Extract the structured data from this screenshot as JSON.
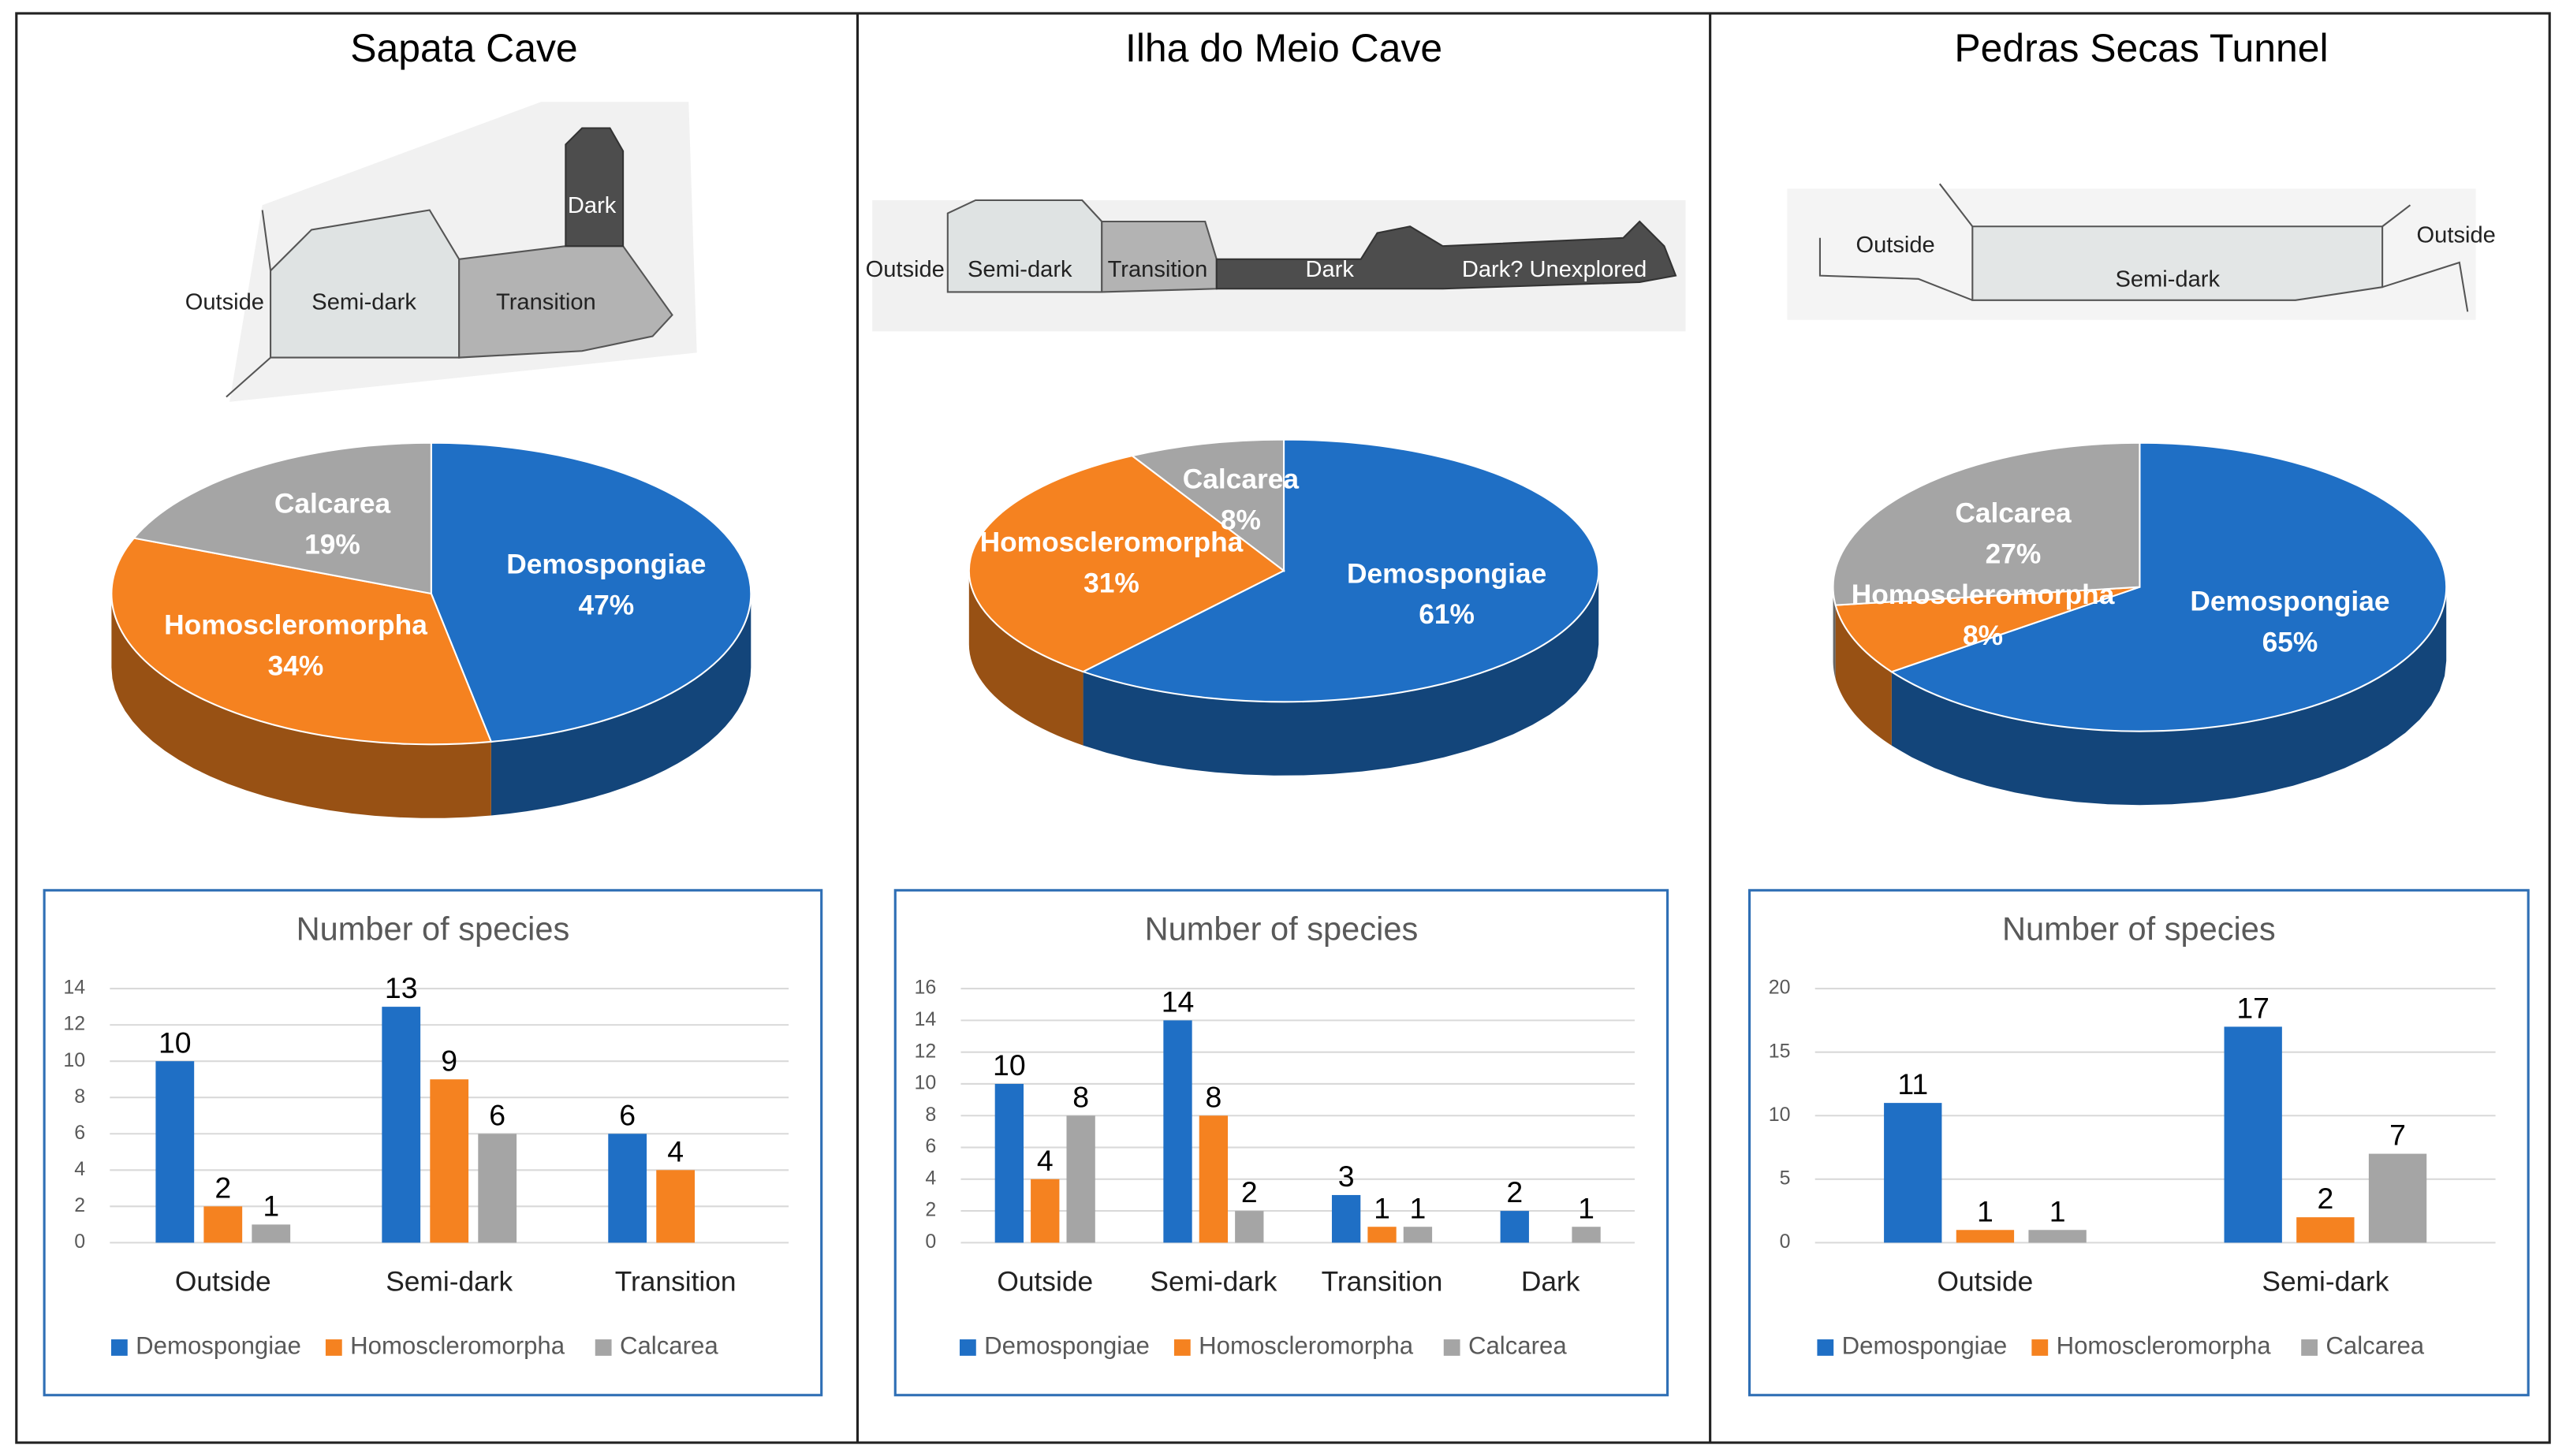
{
  "panels": [
    {
      "title": "Sapata Cave",
      "zones": [
        "Outside",
        "Semi-dark",
        "Transition",
        "Dark"
      ]
    },
    {
      "title": "Ilha do Meio Cave",
      "zones": [
        "Outside",
        "Semi-dark",
        "Transition",
        "Dark",
        "Dark? Unexplored"
      ]
    },
    {
      "title": "Pedras Secas Tunnel",
      "zones": [
        "Outside",
        "Semi-dark",
        "Outside"
      ]
    }
  ],
  "chart_data": [
    {
      "type": "pie",
      "categories": [
        "Demospongiae",
        "Homoscleromorpha",
        "Calcarea"
      ],
      "values": [
        47,
        34,
        19
      ],
      "value_labels": [
        "47%",
        "34%",
        "19%"
      ],
      "colors": [
        "#1f6fc5",
        "#f58220",
        "#a5a5a5"
      ]
    },
    {
      "type": "bar",
      "title": "Number of species",
      "categories": [
        "Outside",
        "Semi-dark",
        "Transition"
      ],
      "series": [
        {
          "name": "Demospongiae",
          "color": "#1f6fc5",
          "values": [
            10,
            13,
            6
          ]
        },
        {
          "name": "Homoscleromorpha",
          "color": "#f58220",
          "values": [
            2,
            9,
            4
          ]
        },
        {
          "name": "Calcarea",
          "color": "#a5a5a5",
          "values": [
            1,
            6,
            null
          ]
        }
      ],
      "ylim": [
        0,
        14
      ],
      "yticks": [
        0,
        2,
        4,
        6,
        8,
        10,
        12,
        14
      ],
      "grid": true,
      "legend": "bottom"
    },
    {
      "type": "pie",
      "categories": [
        "Demospongiae",
        "Homoscleromorpha",
        "Calcarea"
      ],
      "values": [
        61,
        31,
        8
      ],
      "value_labels": [
        "61%",
        "31%",
        "8%"
      ],
      "colors": [
        "#1f6fc5",
        "#f58220",
        "#a5a5a5"
      ]
    },
    {
      "type": "bar",
      "title": "Number of species",
      "categories": [
        "Outside",
        "Semi-dark",
        "Transition",
        "Dark"
      ],
      "series": [
        {
          "name": "Demospongiae",
          "color": "#1f6fc5",
          "values": [
            10,
            14,
            3,
            2
          ]
        },
        {
          "name": "Homoscleromorpha",
          "color": "#f58220",
          "values": [
            4,
            8,
            1,
            null
          ]
        },
        {
          "name": "Calcarea",
          "color": "#a5a5a5",
          "values": [
            8,
            2,
            1,
            1
          ]
        }
      ],
      "ylim": [
        0,
        16
      ],
      "yticks": [
        0,
        2,
        4,
        6,
        8,
        10,
        12,
        14,
        16
      ],
      "grid": true,
      "legend": "bottom"
    },
    {
      "type": "pie",
      "categories": [
        "Demospongiae",
        "Homoscleromorpha",
        "Calcarea"
      ],
      "values": [
        65,
        8,
        27
      ],
      "value_labels": [
        "65%",
        "8%",
        "27%"
      ],
      "colors": [
        "#1f6fc5",
        "#f58220",
        "#a5a5a5"
      ]
    },
    {
      "type": "bar",
      "title": "Number of species",
      "categories": [
        "Outside",
        "Semi-dark"
      ],
      "series": [
        {
          "name": "Demospongiae",
          "color": "#1f6fc5",
          "values": [
            11,
            17
          ]
        },
        {
          "name": "Homoscleromorpha",
          "color": "#f58220",
          "values": [
            1,
            2
          ]
        },
        {
          "name": "Calcarea",
          "color": "#a5a5a5",
          "values": [
            1,
            7
          ]
        }
      ],
      "ylim": [
        0,
        20
      ],
      "yticks": [
        0,
        5,
        10,
        15,
        20
      ],
      "grid": true,
      "legend": "bottom"
    }
  ]
}
